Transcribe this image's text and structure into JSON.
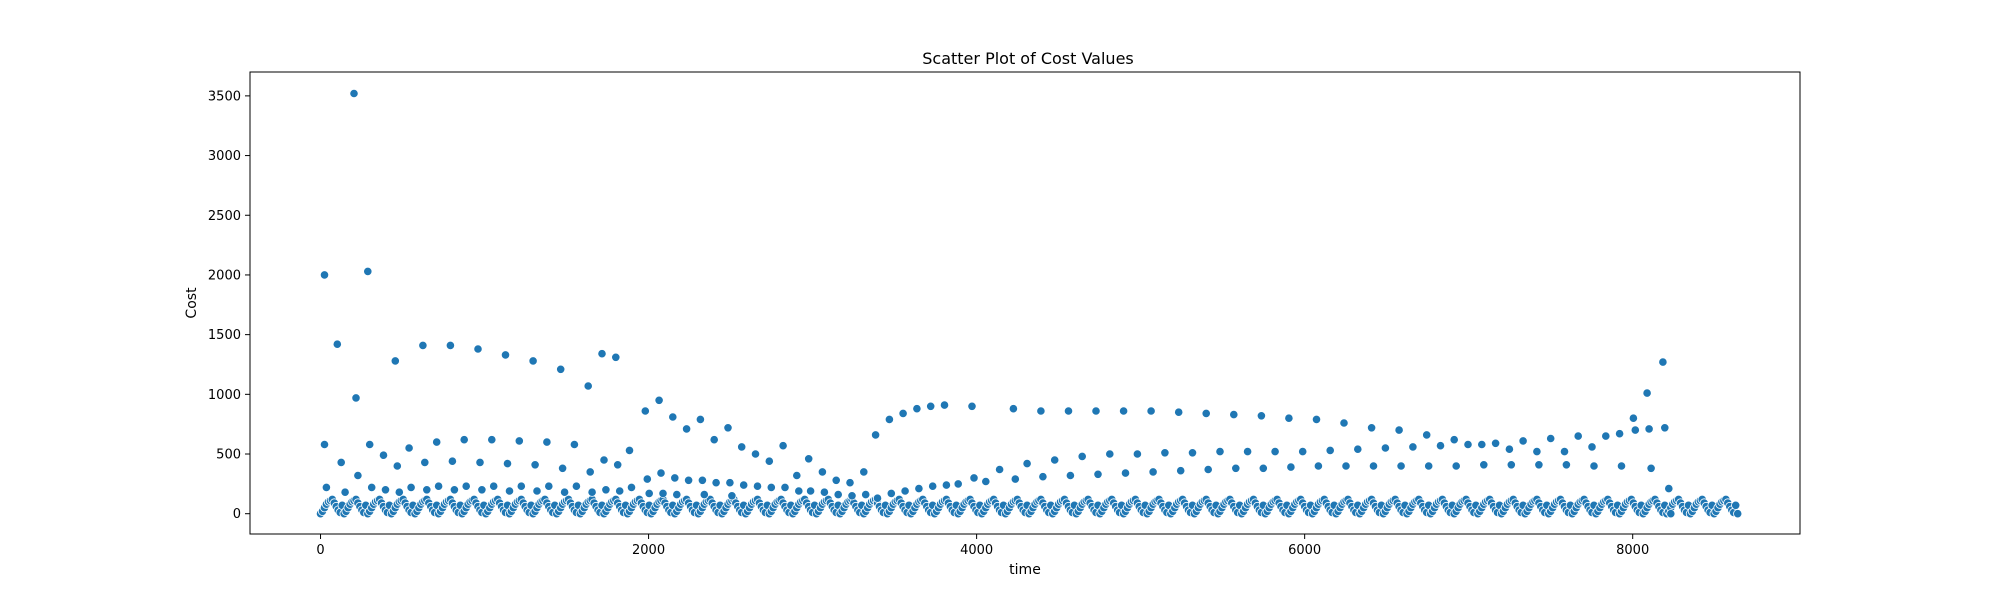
{
  "chart_data": {
    "type": "scatter",
    "title": "Scatter Plot of Cost Values",
    "xlabel": "time",
    "ylabel": "Cost",
    "xlim": [
      -430,
      9020
    ],
    "ylim": [
      -170,
      3700
    ],
    "xticks": [
      0,
      2000,
      4000,
      6000,
      8000
    ],
    "xtick_labels": [
      "0",
      "2000",
      "4000",
      "6000",
      "8000"
    ],
    "yticks": [
      0,
      500,
      1000,
      1500,
      2000,
      2500,
      3000,
      3500
    ],
    "ytick_labels": [
      "0",
      "500",
      "1000",
      "1500",
      "2000",
      "2500",
      "3000",
      "3500"
    ],
    "grid": false,
    "marker_color": "#1f77b4",
    "series": [
      {
        "name": "Cost",
        "points": [
          [
            24,
            2000
          ],
          [
            24,
            580
          ],
          [
            36,
            220
          ],
          [
            102,
            1420
          ],
          [
            126,
            430
          ],
          [
            150,
            180
          ],
          [
            204,
            3520
          ],
          [
            216,
            970
          ],
          [
            228,
            320
          ],
          [
            288,
            2030
          ],
          [
            300,
            580
          ],
          [
            312,
            220
          ],
          [
            384,
            490
          ],
          [
            396,
            200
          ],
          [
            456,
            1280
          ],
          [
            468,
            400
          ],
          [
            480,
            180
          ],
          [
            540,
            550
          ],
          [
            552,
            220
          ],
          [
            624,
            1410
          ],
          [
            636,
            430
          ],
          [
            648,
            200
          ],
          [
            708,
            600
          ],
          [
            720,
            230
          ],
          [
            792,
            1410
          ],
          [
            804,
            440
          ],
          [
            816,
            200
          ],
          [
            876,
            620
          ],
          [
            888,
            230
          ],
          [
            960,
            1380
          ],
          [
            972,
            430
          ],
          [
            984,
            200
          ],
          [
            1044,
            620
          ],
          [
            1056,
            230
          ],
          [
            1128,
            1330
          ],
          [
            1140,
            420
          ],
          [
            1152,
            190
          ],
          [
            1212,
            610
          ],
          [
            1224,
            230
          ],
          [
            1296,
            1280
          ],
          [
            1308,
            410
          ],
          [
            1320,
            190
          ],
          [
            1380,
            600
          ],
          [
            1392,
            230
          ],
          [
            1464,
            1210
          ],
          [
            1476,
            380
          ],
          [
            1488,
            180
          ],
          [
            1548,
            580
          ],
          [
            1560,
            230
          ],
          [
            1632,
            1070
          ],
          [
            1644,
            350
          ],
          [
            1656,
            180
          ],
          [
            1716,
            1340
          ],
          [
            1728,
            450
          ],
          [
            1740,
            200
          ],
          [
            1800,
            1310
          ],
          [
            1812,
            410
          ],
          [
            1824,
            190
          ],
          [
            1884,
            530
          ],
          [
            1896,
            220
          ],
          [
            1980,
            860
          ],
          [
            1992,
            290
          ],
          [
            2004,
            170
          ],
          [
            2064,
            950
          ],
          [
            2076,
            340
          ],
          [
            2088,
            170
          ],
          [
            2148,
            810
          ],
          [
            2160,
            300
          ],
          [
            2172,
            160
          ],
          [
            2232,
            710
          ],
          [
            2244,
            280
          ],
          [
            2316,
            790
          ],
          [
            2328,
            280
          ],
          [
            2340,
            160
          ],
          [
            2400,
            620
          ],
          [
            2412,
            260
          ],
          [
            2484,
            720
          ],
          [
            2496,
            260
          ],
          [
            2508,
            150
          ],
          [
            2568,
            560
          ],
          [
            2580,
            240
          ],
          [
            2652,
            500
          ],
          [
            2664,
            230
          ],
          [
            2736,
            440
          ],
          [
            2748,
            220
          ],
          [
            2820,
            570
          ],
          [
            2832,
            220
          ],
          [
            2904,
            320
          ],
          [
            2916,
            190
          ],
          [
            2976,
            460
          ],
          [
            2988,
            190
          ],
          [
            3060,
            350
          ],
          [
            3072,
            180
          ],
          [
            3144,
            280
          ],
          [
            3156,
            160
          ],
          [
            3228,
            260
          ],
          [
            3240,
            150
          ],
          [
            3312,
            350
          ],
          [
            3324,
            160
          ],
          [
            3384,
            660
          ],
          [
            3396,
            130
          ],
          [
            3468,
            790
          ],
          [
            3480,
            170
          ],
          [
            3552,
            840
          ],
          [
            3564,
            190
          ],
          [
            3636,
            880
          ],
          [
            3648,
            210
          ],
          [
            3720,
            900
          ],
          [
            3732,
            230
          ],
          [
            3804,
            910
          ],
          [
            3816,
            240
          ],
          [
            3888,
            250
          ],
          [
            3972,
            900
          ],
          [
            3984,
            300
          ],
          [
            4056,
            270
          ],
          [
            4140,
            370
          ],
          [
            4224,
            880
          ],
          [
            4236,
            290
          ],
          [
            4308,
            420
          ],
          [
            4392,
            860
          ],
          [
            4404,
            310
          ],
          [
            4476,
            450
          ],
          [
            4560,
            860
          ],
          [
            4572,
            320
          ],
          [
            4644,
            480
          ],
          [
            4728,
            860
          ],
          [
            4740,
            330
          ],
          [
            4812,
            500
          ],
          [
            4896,
            860
          ],
          [
            4908,
            340
          ],
          [
            4980,
            500
          ],
          [
            5064,
            860
          ],
          [
            5076,
            350
          ],
          [
            5148,
            510
          ],
          [
            5232,
            850
          ],
          [
            5244,
            360
          ],
          [
            5316,
            510
          ],
          [
            5400,
            840
          ],
          [
            5412,
            370
          ],
          [
            5484,
            520
          ],
          [
            5568,
            830
          ],
          [
            5580,
            380
          ],
          [
            5652,
            520
          ],
          [
            5736,
            820
          ],
          [
            5748,
            380
          ],
          [
            5820,
            520
          ],
          [
            5904,
            800
          ],
          [
            5916,
            390
          ],
          [
            5988,
            520
          ],
          [
            6072,
            790
          ],
          [
            6084,
            400
          ],
          [
            6156,
            530
          ],
          [
            6240,
            760
          ],
          [
            6252,
            400
          ],
          [
            6324,
            540
          ],
          [
            6408,
            720
          ],
          [
            6420,
            400
          ],
          [
            6492,
            550
          ],
          [
            6576,
            700
          ],
          [
            6588,
            400
          ],
          [
            6660,
            560
          ],
          [
            6744,
            660
          ],
          [
            6756,
            400
          ],
          [
            6828,
            570
          ],
          [
            6912,
            620
          ],
          [
            6924,
            400
          ],
          [
            6996,
            580
          ],
          [
            7080,
            580
          ],
          [
            7092,
            410
          ],
          [
            7164,
            590
          ],
          [
            7248,
            540
          ],
          [
            7260,
            410
          ],
          [
            7332,
            610
          ],
          [
            7416,
            520
          ],
          [
            7428,
            410
          ],
          [
            7500,
            630
          ],
          [
            7584,
            520
          ],
          [
            7596,
            410
          ],
          [
            7668,
            650
          ],
          [
            7752,
            560
          ],
          [
            7764,
            400
          ],
          [
            7836,
            650
          ],
          [
            7920,
            670
          ],
          [
            7932,
            400
          ],
          [
            8004,
            800
          ],
          [
            8016,
            700
          ],
          [
            8088,
            1010
          ],
          [
            8100,
            710
          ],
          [
            8112,
            380
          ],
          [
            8184,
            1270
          ],
          [
            8196,
            720
          ],
          [
            8220,
            210
          ],
          [
            8232,
            0
          ]
        ]
      }
    ],
    "baseline_band": {
      "note": "dense markers between 0 and 150 along the full time axis",
      "x_range": [
        0,
        8640
      ],
      "step": 12,
      "values_cycle": [
        0,
        20,
        50,
        80,
        100,
        110,
        120,
        90,
        60,
        30,
        10,
        70
      ]
    }
  }
}
